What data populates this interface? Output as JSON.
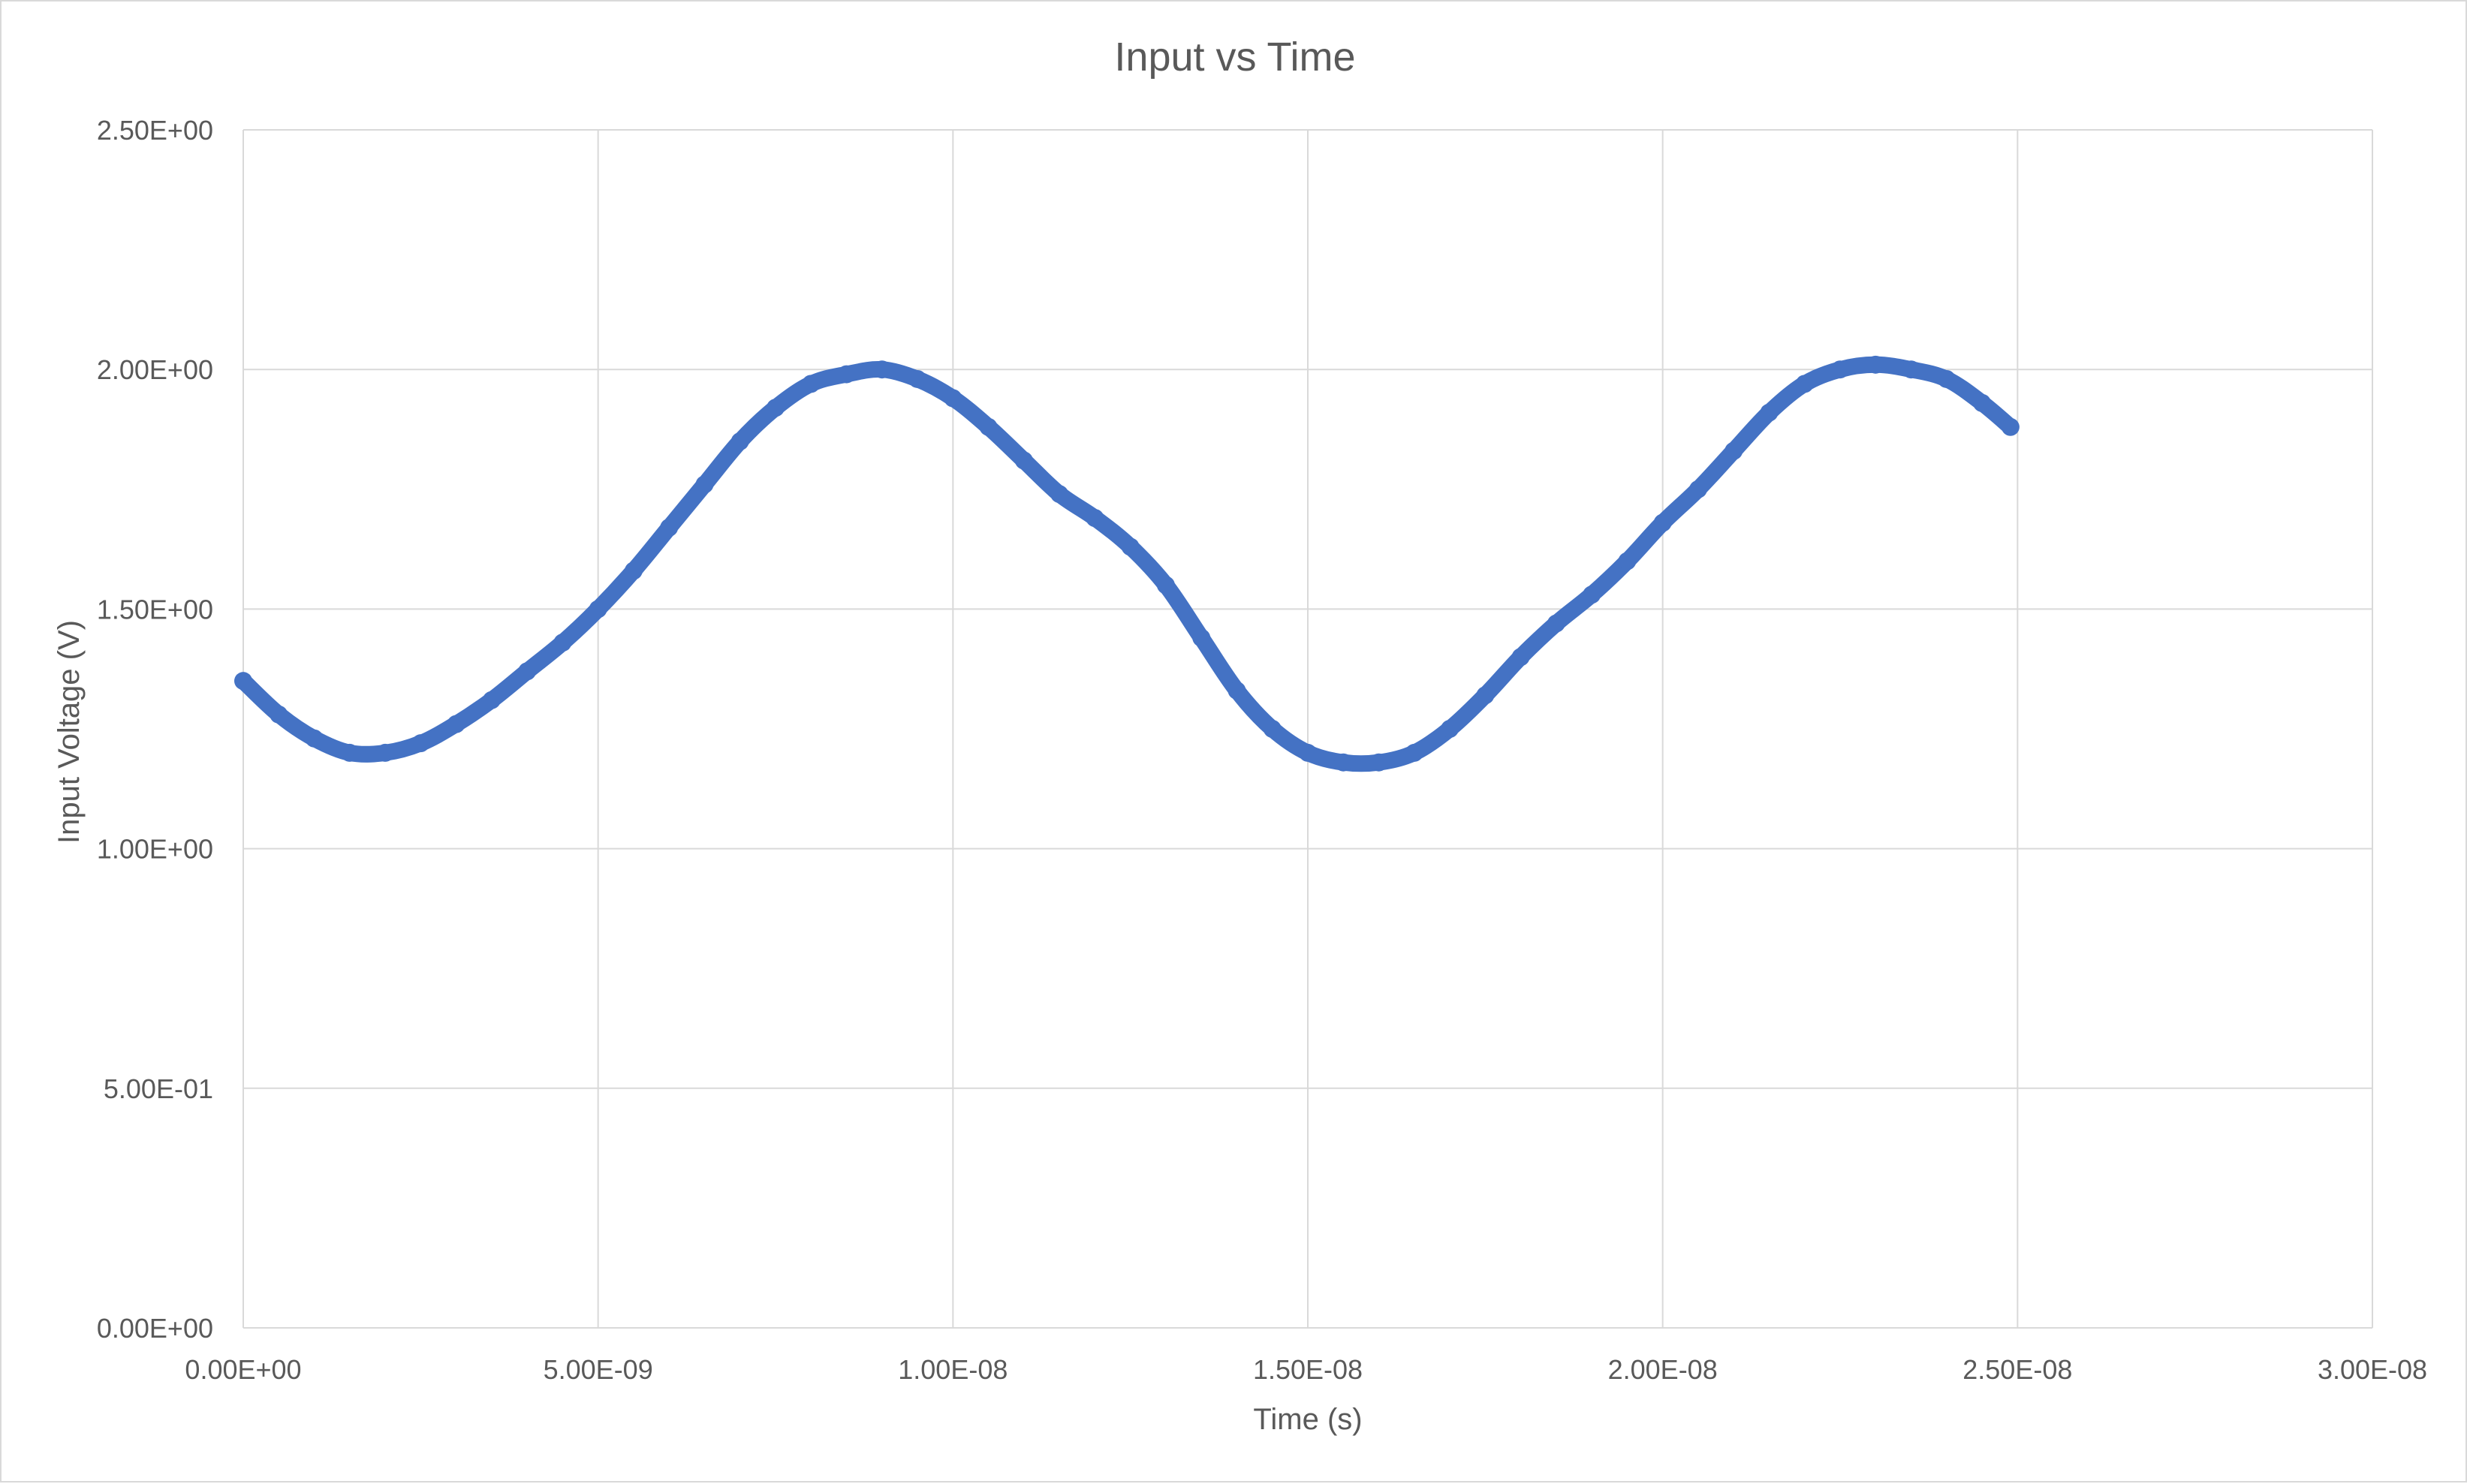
{
  "chart_data": {
    "type": "scatter",
    "title": "Input vs Time",
    "xlabel": "Time (s)",
    "ylabel": "Input Voltage (V)",
    "xlim": [
      0,
      3e-08
    ],
    "ylim": [
      0,
      2.5
    ],
    "x_ticks": [
      0,
      5e-09,
      1e-08,
      1.5e-08,
      2e-08,
      2.5e-08,
      3e-08
    ],
    "x_tick_labels": [
      "0.00E+00",
      "5.00E-09",
      "1.00E-08",
      "1.50E-08",
      "2.00E-08",
      "2.50E-08",
      "3.00E-08"
    ],
    "y_ticks": [
      0,
      0.5,
      1.0,
      1.5,
      2.0,
      2.5
    ],
    "y_tick_labels": [
      "0.00E+00",
      "5.00E-01",
      "1.00E+00",
      "1.50E+00",
      "2.00E+00",
      "2.50E+00"
    ],
    "grid": true,
    "legend": "none",
    "series_color": "#4472c4",
    "series": [
      {
        "x": [
          0,
          5e-10,
          1e-09,
          1.5e-09,
          2e-09,
          2.5e-09,
          3e-09,
          3.5e-09,
          4e-09,
          4.5e-09,
          5e-09,
          5.5e-09,
          6e-09,
          6.5e-09,
          7e-09,
          7.5e-09,
          8e-09,
          8.5e-09,
          9e-09,
          9.5e-09,
          1e-08,
          1.05e-08,
          1.1e-08,
          1.15e-08,
          1.2e-08,
          1.25e-08,
          1.3e-08,
          1.35e-08,
          1.4e-08,
          1.45e-08,
          1.5e-08,
          1.55e-08,
          1.6e-08,
          1.65e-08,
          1.7e-08,
          1.75e-08,
          1.8e-08,
          1.85e-08,
          1.9e-08,
          1.95e-08,
          2e-08,
          2.05e-08,
          2.1e-08,
          2.15e-08,
          2.2e-08,
          2.25e-08,
          2.3e-08,
          2.35e-08,
          2.4e-08,
          2.45e-08,
          2.49e-08
        ],
        "y": [
          1.35,
          1.28,
          1.23,
          1.2,
          1.2,
          1.22,
          1.26,
          1.31,
          1.37,
          1.43,
          1.5,
          1.58,
          1.67,
          1.76,
          1.85,
          1.92,
          1.97,
          1.99,
          2.0,
          1.98,
          1.94,
          1.88,
          1.81,
          1.74,
          1.69,
          1.63,
          1.55,
          1.44,
          1.33,
          1.25,
          1.2,
          1.18,
          1.18,
          1.2,
          1.25,
          1.32,
          1.4,
          1.47,
          1.53,
          1.6,
          1.68,
          1.75,
          1.83,
          1.91,
          1.97,
          2.0,
          2.01,
          2.0,
          1.98,
          1.93,
          1.88
        ]
      }
    ]
  }
}
